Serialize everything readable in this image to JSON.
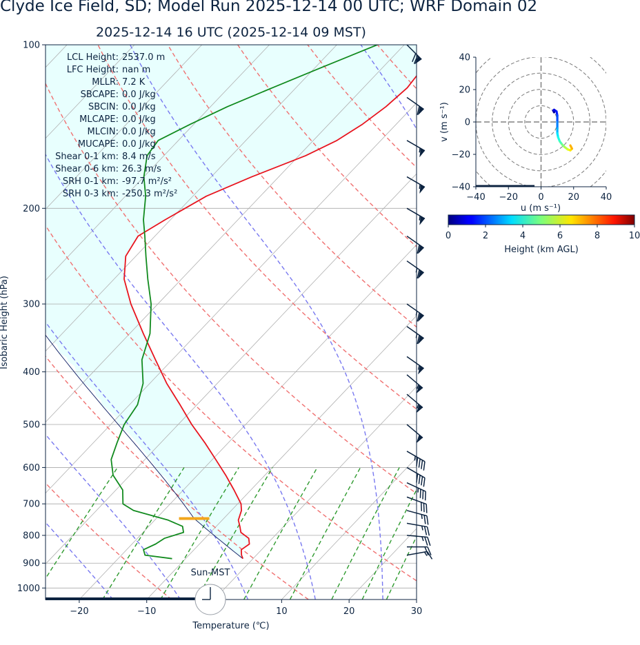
{
  "header": {
    "title": "Clyde Ice Field, SD; Model Run 2025-12-14 00 UTC; WRF Domain 02",
    "subtitle": "2025-12-14 16 UTC  (2025-12-14 09 MST)"
  },
  "chart_data": [
    {
      "type": "line",
      "subtype": "skew-t",
      "xlabel": "Temperature (℃)",
      "ylabel": "Isobaric Height (hPa)",
      "xlim": [
        -25,
        30
      ],
      "ylim": [
        1050,
        100
      ],
      "log_y": true,
      "x_ticks": [
        -20,
        -10,
        0,
        10,
        20,
        30
      ],
      "x_tick_labels": [
        "−20",
        "−10",
        "0",
        "10",
        "20",
        "30"
      ],
      "y_ticks": [
        100,
        200,
        300,
        400,
        500,
        600,
        700,
        800,
        900,
        1000
      ],
      "y_tick_labels": [
        "100",
        "200",
        "300",
        "400",
        "500",
        "600",
        "700",
        "800",
        "900",
        "1000"
      ],
      "grid": true,
      "series": [
        {
          "color": "#e8141e",
          "pressure": [
            883,
            870,
            850,
            830,
            810,
            790,
            770,
            750,
            720,
            700,
            660,
            620,
            580,
            540,
            500,
            460,
            420,
            380,
            340,
            300,
            270,
            245,
            225,
            210,
            190,
            175,
            160,
            150,
            140,
            130,
            120,
            110,
            100
          ],
          "values": [
            -1.5,
            -2.2,
            -3.0,
            -2.6,
            -3.5,
            -5.5,
            -6.5,
            -7.6,
            -8.5,
            -9.5,
            -12.5,
            -15.8,
            -19.5,
            -23.5,
            -28.0,
            -32.5,
            -37.5,
            -42.5,
            -48.0,
            -54.0,
            -58.5,
            -61.5,
            -62.5,
            -60.8,
            -58.0,
            -54.0,
            -49.0,
            -46.5,
            -45.0,
            -44.0,
            -43.5,
            -44.0,
            -45.5
          ]
        },
        {
          "color": "#118a1e",
          "pressure": [
            883,
            870,
            850,
            830,
            810,
            790,
            770,
            750,
            720,
            700,
            660,
            620,
            580,
            540,
            500,
            460,
            420,
            380,
            340,
            300,
            270,
            245,
            225,
            210,
            190,
            175,
            160,
            150,
            140,
            130,
            120,
            110,
            100
          ],
          "values": [
            -12.0,
            -16.5,
            -17.5,
            -16.5,
            -16.0,
            -14.0,
            -15.0,
            -18.0,
            -24.5,
            -27.0,
            -29.0,
            -32.5,
            -35.0,
            -36.5,
            -38.0,
            -38.8,
            -41.0,
            -44.5,
            -47.0,
            -51.0,
            -55.0,
            -58.5,
            -61.5,
            -64.0,
            -67.0,
            -70.0,
            -72.5,
            -73.0,
            -70.5,
            -67.5,
            -63.5,
            -59.0,
            -54.0
          ]
        }
      ],
      "stats": [
        {
          "label": "LCL Height:",
          "value": "2537.0 m"
        },
        {
          "label": "LFC Height:",
          "value": "nan m"
        },
        {
          "label": "MLLR:",
          "value": "7.2 K"
        },
        {
          "label": "SBCAPE:",
          "value": "0.0 J/kg"
        },
        {
          "label": "SBCIN:",
          "value": "0.0 J/kg"
        },
        {
          "label": "MLCAPE:",
          "value": "0.0 J/kg"
        },
        {
          "label": "MLCIN:",
          "value": "0.0 J/kg"
        },
        {
          "label": "MUCAPE:",
          "value": "0.0 J/kg"
        },
        {
          "label": "Shear 0-1 km:",
          "value": "8.4 m/s"
        },
        {
          "label": "Shear 0-6 km:",
          "value": "26.3 m/s"
        },
        {
          "label": "SRH 0-1 km:",
          "value": "-97.7 m²/s²"
        },
        {
          "label": "SRH 0-3 km:",
          "value": "-250.3 m²/s²"
        }
      ],
      "annotation": "Sun-MST",
      "lcl_pressure": 745,
      "colors": {
        "temperature": "#e8141e",
        "dewpoint": "#118a1e",
        "parcel": "#1a2a6c",
        "lcl_marker": "#f2a61c",
        "cape_fill": "#e8fffe",
        "frame": "#0c2340"
      }
    },
    {
      "type": "line",
      "subtype": "hodograph",
      "xlabel": "u (m s⁻¹)",
      "ylabel": "v (m s⁻¹)",
      "xlim": [
        -40,
        40
      ],
      "ylim": [
        -40,
        40
      ],
      "x_ticks": [
        -40,
        -20,
        0,
        20,
        40
      ],
      "y_ticks": [
        -40,
        -20,
        0,
        20,
        40
      ],
      "x_tick_labels": [
        "−40",
        "−20",
        "0",
        "20",
        "40"
      ],
      "y_tick_labels": [
        "−40",
        "−20",
        "0",
        "20",
        "40"
      ],
      "u": [
        8.0,
        7.5,
        8.0,
        9.5,
        10.0,
        10.0,
        10.0,
        10.0,
        10.5,
        11.5,
        13.0,
        14.5,
        16.5,
        18.0,
        19.0,
        18.0
      ],
      "v": [
        6.0,
        7.0,
        7.5,
        6.5,
        4.0,
        0.0,
        -4.0,
        -7.0,
        -9.5,
        -12.0,
        -14.0,
        -15.5,
        -17.0,
        -17.5,
        -16.5,
        -14.5
      ],
      "height_km": [
        0.2,
        0.6,
        1.0,
        1.5,
        2.0,
        2.5,
        3.0,
        3.5,
        4.0,
        4.5,
        5.0,
        5.5,
        6.0,
        6.5,
        7.0,
        7.5
      ]
    },
    {
      "type": "colorbar",
      "label": "Height (km AGL)",
      "range": [
        0,
        10
      ],
      "ticks": [
        "0",
        "2",
        "4",
        "6",
        "8",
        "10"
      ],
      "colormap": "jet"
    }
  ]
}
